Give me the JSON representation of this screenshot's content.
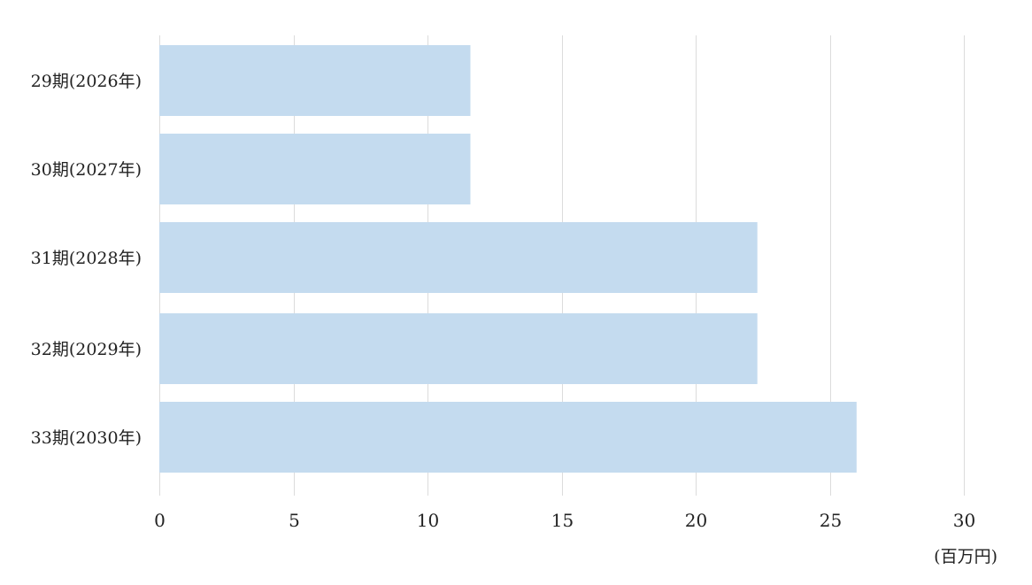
{
  "chart_data": {
    "type": "bar",
    "orientation": "horizontal",
    "categories": [
      "29期(2026年)",
      "30期(2027年)",
      "31期(2028年)",
      "32期(2029年)",
      "33期(2030年)"
    ],
    "values": [
      11.6,
      11.6,
      22.3,
      22.3,
      26.0
    ],
    "xlim": [
      0,
      30
    ],
    "x_ticks": [
      "0",
      "5",
      "10",
      "15",
      "20",
      "25",
      "30"
    ],
    "x_unit": "(百万円)",
    "grid": true,
    "legend": "none",
    "bar_color": "#c4dbef",
    "grid_color": "#dcdcdc"
  }
}
